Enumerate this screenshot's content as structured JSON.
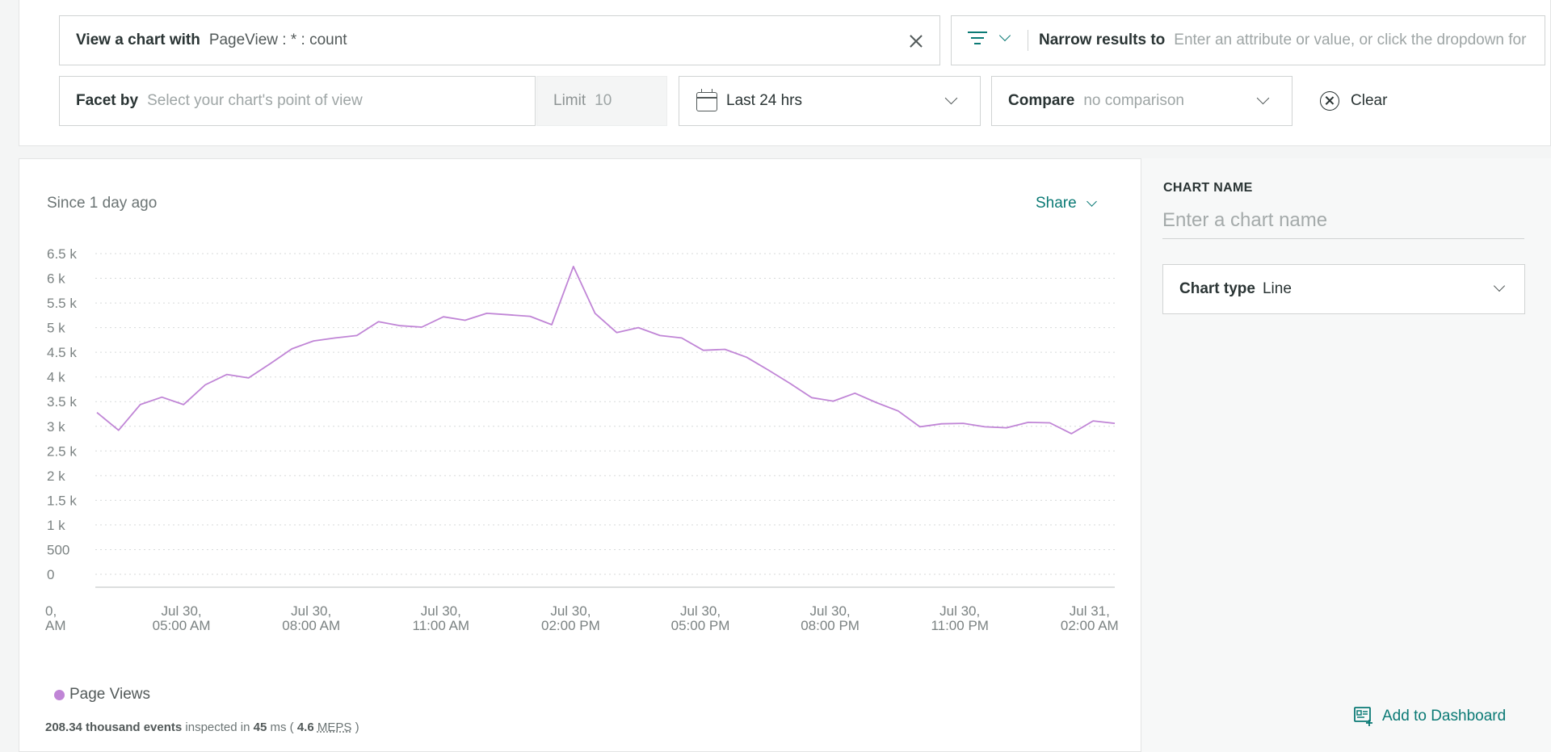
{
  "query": {
    "chart_with": {
      "label": "View a chart with",
      "value": "PageView : * : count"
    },
    "narrow": {
      "label": "Narrow results to",
      "placeholder": "Enter an attribute or value, or click the dropdown for"
    },
    "facet": {
      "label": "Facet by",
      "placeholder": "Select your chart's point of view"
    },
    "limit": {
      "label": "Limit",
      "placeholder": "10"
    },
    "time_range": {
      "value": "Last 24 hrs"
    },
    "compare": {
      "label": "Compare",
      "value": "no comparison"
    },
    "clear_label": "Clear"
  },
  "chart_card": {
    "since": "Since 1 day ago",
    "share_label": "Share",
    "stats": {
      "events": "208.34 thousand events",
      "inspected_in": "inspected in",
      "ms_value": "45",
      "ms_unit": "ms (",
      "meps_value": "4.6",
      "meps_unit": "MEPS",
      "close": ")"
    }
  },
  "side_panel": {
    "chart_name_label": "CHART NAME",
    "chart_name_placeholder": "Enter a chart name",
    "chart_type_label": "Chart type",
    "chart_type_value": "Line",
    "add_to_dashboard": "Add to Dashboard"
  },
  "colors": {
    "accent": "#0b7a75",
    "series": "#c085d6"
  },
  "chart_data": {
    "type": "line",
    "title": "",
    "xlabel": "",
    "ylabel": "",
    "ylim": [
      0,
      6500
    ],
    "y_ticks": [
      "0",
      "500",
      "1 k",
      "1.5 k",
      "2 k",
      "2.5 k",
      "3 k",
      "3.5 k",
      "4 k",
      "4.5 k",
      "5 k",
      "5.5 k",
      "6 k",
      "6.5 k"
    ],
    "x_ticks": [
      [
        "0,",
        "AM"
      ],
      [
        "Jul 30,",
        "05:00 AM"
      ],
      [
        "Jul 30,",
        "08:00 AM"
      ],
      [
        "Jul 30,",
        "11:00 AM"
      ],
      [
        "Jul 30,",
        "02:00 PM"
      ],
      [
        "Jul 30,",
        "05:00 PM"
      ],
      [
        "Jul 30,",
        "08:00 PM"
      ],
      [
        "Jul 30,",
        "11:00 PM"
      ],
      [
        "Jul 31,",
        "02:00 AM"
      ]
    ],
    "grid": true,
    "series": [
      {
        "name": "Page Views",
        "values": [
          3280,
          2920,
          3440,
          3590,
          3440,
          3840,
          4050,
          3980,
          4270,
          4570,
          4730,
          4790,
          4840,
          5120,
          5040,
          5010,
          5220,
          5150,
          5290,
          5260,
          5230,
          5060,
          6240,
          5290,
          4900,
          5000,
          4840,
          4790,
          4540,
          4560,
          4400,
          4140,
          3870,
          3580,
          3510,
          3670,
          3480,
          3310,
          2990,
          3050,
          3060,
          2990,
          2970,
          3080,
          3070,
          2850,
          3110,
          3060
        ]
      }
    ]
  }
}
